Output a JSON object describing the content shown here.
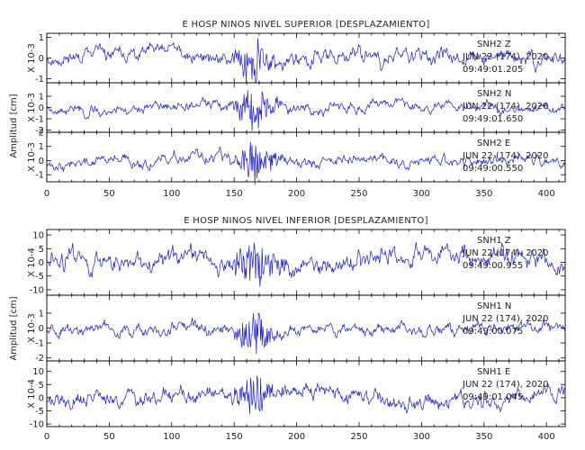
{
  "chart_data": [
    {
      "type": "line",
      "title": "E HOSP NINOS NIVEL SUPERIOR [DESPLAZAMIENTO]",
      "ylabel": "Amplitud [cm]",
      "xlim": [
        0,
        415
      ],
      "x_ticks": [
        0,
        50,
        100,
        150,
        200,
        250,
        300,
        350,
        400
      ],
      "panels": [
        {
          "station": "SNH2",
          "component": "Z",
          "date": "JUN 22 (174), 2020",
          "time": "09:49:01.205",
          "scale": "X 10-3",
          "ylim": [
            -1.2,
            1.2
          ],
          "y_ticks": [
            -1,
            0,
            1
          ],
          "seed": 11,
          "amp": 0.45,
          "quake": 1.0,
          "color": "#1a1acc"
        },
        {
          "station": "SNH2",
          "component": "N",
          "date": "JUN 22 (174), 2020",
          "time": "09:49:01.650",
          "scale": "X 10-3",
          "ylim": [
            -2.2,
            2.2
          ],
          "y_ticks": [
            -2,
            -1,
            0,
            1
          ],
          "seed": 23,
          "amp": 0.55,
          "quake": 2.0,
          "color": "#1a1acc"
        },
        {
          "station": "SNH2",
          "component": "E",
          "date": "JUN 22 (174), 2020",
          "time": "09:49:00.550",
          "scale": "X 10-3",
          "ylim": [
            -1.5,
            2.0
          ],
          "y_ticks": [
            -1,
            0,
            1,
            2
          ],
          "seed": 37,
          "amp": 0.5,
          "quake": 1.6,
          "color": "#1a1acc"
        }
      ]
    },
    {
      "type": "line",
      "title": "E HOSP NINOS NIVEL INFERIOR [DESPLAZAMIENTO]",
      "ylabel": "Amplitud [cm]",
      "xlim": [
        0,
        415
      ],
      "x_ticks": [
        0,
        50,
        100,
        150,
        200,
        250,
        300,
        350,
        400
      ],
      "panels": [
        {
          "station": "SNH1",
          "component": "Z",
          "date": "JUN 22 (174), 2020",
          "time": "09:49:00.955",
          "scale": "X 10-4",
          "ylim": [
            -12,
            12
          ],
          "y_ticks": [
            -10,
            -5,
            0,
            5,
            10
          ],
          "seed": 51,
          "amp": 4.5,
          "quake": 9.0,
          "color": "#1a1acc"
        },
        {
          "station": "SNH1",
          "component": "N",
          "date": "JUN 22 (174), 2020",
          "time": "09:49:00.075",
          "scale": "X 10-3",
          "ylim": [
            -2.2,
            2.2
          ],
          "y_ticks": [
            -2,
            -1,
            0,
            1
          ],
          "seed": 67,
          "amp": 0.5,
          "quake": 1.4,
          "color": "#1a1acc"
        },
        {
          "station": "SNH1",
          "component": "E",
          "date": "JUN 22 (174), 2020",
          "time": "09:49:01.045",
          "scale": "X 10-4",
          "ylim": [
            -11,
            14
          ],
          "y_ticks": [
            -10,
            -5,
            0,
            5,
            10
          ],
          "seed": 79,
          "amp": 4.0,
          "quake": 7.0,
          "color": "#1a1acc"
        }
      ]
    }
  ]
}
